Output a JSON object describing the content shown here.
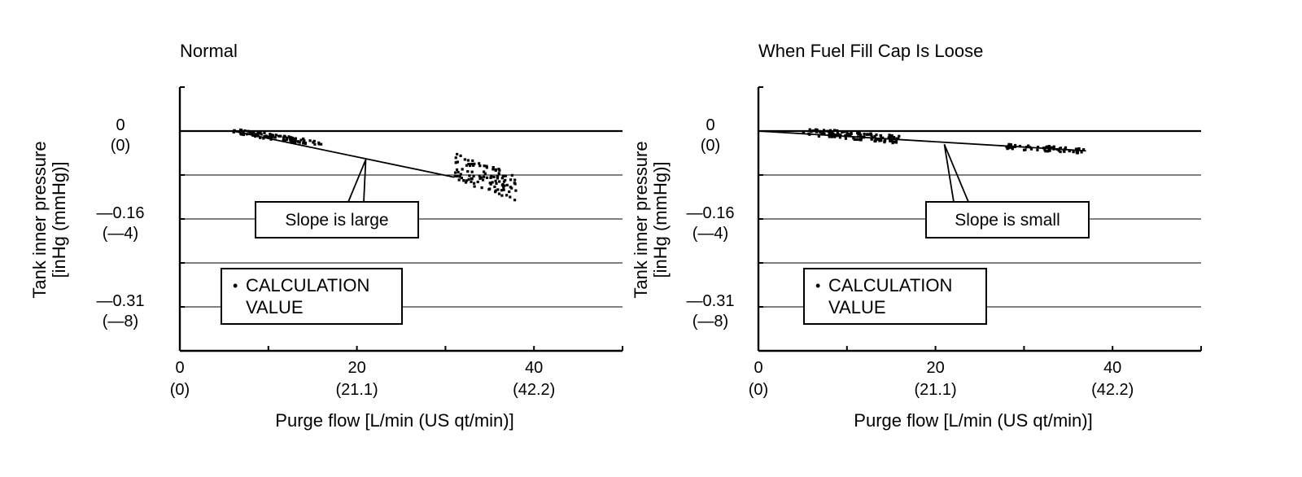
{
  "chart_data": [
    {
      "type": "scatter",
      "title": "Normal",
      "xlabel": "Purge flow [L/min (US qt/min)]",
      "ylabel_line1": "Tank inner pressure",
      "ylabel_line2": "[inHg (mmHg)]",
      "xlim": [
        0,
        50
      ],
      "ylim": [
        -10,
        2
      ],
      "x_ticks": [
        {
          "value": 0,
          "label": "0",
          "sublabel": "(0)"
        },
        {
          "value": 20,
          "label": "20",
          "sublabel": "(21.1)"
        },
        {
          "value": 40,
          "label": "40",
          "sublabel": "(42.2)"
        }
      ],
      "y_ticks": [
        {
          "value": 0,
          "label": "0",
          "sublabel": "(0)"
        },
        {
          "value": -4,
          "label": "—0.16",
          "sublabel": "(—4)"
        },
        {
          "value": -8,
          "label": "—0.31",
          "sublabel": "(—8)"
        }
      ],
      "gridlines": [
        0,
        -2,
        -4,
        -6,
        -8
      ],
      "grid": true,
      "trend_line": [
        [
          6,
          0
        ],
        [
          31,
          -2.1
        ]
      ],
      "clusters": [
        {
          "x_range": [
            6,
            16
          ],
          "y_start": 0,
          "y_end": -0.6,
          "spread": 0.25,
          "count": 90
        },
        {
          "x_range": [
            31,
            38
          ],
          "y_start": -1.6,
          "y_end": -2.6,
          "spread": 1.2,
          "count": 110
        }
      ],
      "callout": {
        "label": "Slope is large",
        "target_x": 21,
        "target_y": -1.3
      },
      "legend": {
        "marker": "•",
        "line1": "CALCULATION",
        "line2": "VALUE",
        "position": "bottom-left"
      }
    },
    {
      "type": "scatter",
      "title": "When Fuel Fill Cap Is Loose",
      "xlabel": "Purge flow [L/min (US qt/min)]",
      "ylabel_line1": "Tank inner pressure",
      "ylabel_line2": "[inHg (mmHg)]",
      "xlim": [
        0,
        50
      ],
      "ylim": [
        -10,
        2
      ],
      "x_ticks": [
        {
          "value": 0,
          "label": "0",
          "sublabel": "(0)"
        },
        {
          "value": 20,
          "label": "20",
          "sublabel": "(21.1)"
        },
        {
          "value": 40,
          "label": "40",
          "sublabel": "(42.2)"
        }
      ],
      "y_ticks": [
        {
          "value": 0,
          "label": "0",
          "sublabel": "(0)"
        },
        {
          "value": -4,
          "label": "—0.16",
          "sublabel": "(—4)"
        },
        {
          "value": -8,
          "label": "—0.31",
          "sublabel": "(—8)"
        }
      ],
      "gridlines": [
        0,
        -2,
        -4,
        -6,
        -8
      ],
      "grid": true,
      "trend_line": [
        [
          0,
          0
        ],
        [
          37,
          -0.9
        ]
      ],
      "clusters": [
        {
          "x_range": [
            5,
            16
          ],
          "y_start": 0,
          "y_end": -0.4,
          "spread": 0.35,
          "count": 130
        },
        {
          "x_range": [
            28,
            37
          ],
          "y_start": -0.7,
          "y_end": -0.9,
          "spread": 0.25,
          "count": 60
        }
      ],
      "callout": {
        "label": "Slope is small",
        "target_x": 21,
        "target_y": -0.6
      },
      "legend": {
        "marker": "•",
        "line1": "CALCULATION",
        "line2": "VALUE",
        "position": "bottom-left"
      }
    }
  ]
}
